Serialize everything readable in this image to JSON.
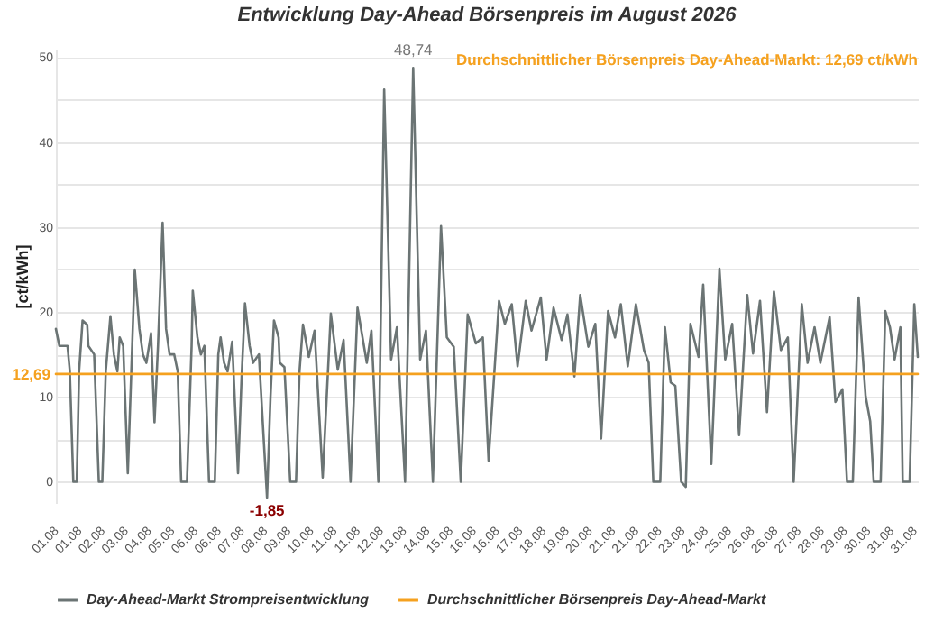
{
  "chart_data": {
    "type": "line",
    "title": "Entwicklung Day-Ahead Börsenpreis im August 2026",
    "ylabel": "[ct/kWh]",
    "xlim": [
      "2026-08-01T00:00",
      "2026-08-31T23:00"
    ],
    "ylim": [
      -2.5,
      51
    ],
    "xticks": [
      {
        "value": "2026-08-01T00:00",
        "label": "01.08"
      },
      {
        "value": "2026-08-01T20:00",
        "label": "01.08"
      },
      {
        "value": "2026-08-02T16:00",
        "label": "02.08"
      },
      {
        "value": "2026-08-03T12:00",
        "label": "03.08"
      },
      {
        "value": "2026-08-04T08:00",
        "label": "04.08"
      },
      {
        "value": "2026-08-05T04:00",
        "label": "05.08"
      },
      {
        "value": "2026-08-06T00:00",
        "label": "06.08"
      },
      {
        "value": "2026-08-06T20:00",
        "label": "06.08"
      },
      {
        "value": "2026-08-07T16:00",
        "label": "07.08"
      },
      {
        "value": "2026-08-08T12:00",
        "label": "08.08"
      },
      {
        "value": "2026-08-09T08:00",
        "label": "09.08"
      },
      {
        "value": "2026-08-10T04:00",
        "label": "10.08"
      },
      {
        "value": "2026-08-11T00:00",
        "label": "11.08"
      },
      {
        "value": "2026-08-11T20:00",
        "label": "11.08"
      },
      {
        "value": "2026-08-12T16:00",
        "label": "12.08"
      },
      {
        "value": "2026-08-13T12:00",
        "label": "13.08"
      },
      {
        "value": "2026-08-14T08:00",
        "label": "14.08"
      },
      {
        "value": "2026-08-15T04:00",
        "label": "15.08"
      },
      {
        "value": "2026-08-16T00:00",
        "label": "16.08"
      },
      {
        "value": "2026-08-16T20:00",
        "label": "16.08"
      },
      {
        "value": "2026-08-17T16:00",
        "label": "17.08"
      },
      {
        "value": "2026-08-18T12:00",
        "label": "18.08"
      },
      {
        "value": "2026-08-19T08:00",
        "label": "19.08"
      },
      {
        "value": "2026-08-20T04:00",
        "label": "20.08"
      },
      {
        "value": "2026-08-21T00:00",
        "label": "21.08"
      },
      {
        "value": "2026-08-21T20:00",
        "label": "21.08"
      },
      {
        "value": "2026-08-22T16:00",
        "label": "22.08"
      },
      {
        "value": "2026-08-23T12:00",
        "label": "23.08"
      },
      {
        "value": "2026-08-24T08:00",
        "label": "24.08"
      },
      {
        "value": "2026-08-25T04:00",
        "label": "25.08"
      },
      {
        "value": "2026-08-26T00:00",
        "label": "26.08"
      },
      {
        "value": "2026-08-26T20:00",
        "label": "26.08"
      },
      {
        "value": "2026-08-27T16:00",
        "label": "27.08"
      },
      {
        "value": "2026-08-28T12:00",
        "label": "28.08"
      },
      {
        "value": "2026-08-29T08:00",
        "label": "29.08"
      },
      {
        "value": "2026-08-30T04:00",
        "label": "30.08"
      },
      {
        "value": "2026-08-31T00:00",
        "label": "31.08"
      },
      {
        "value": "2026-08-31T20:00",
        "label": "31.08"
      }
    ],
    "yticks": [
      0,
      {
        "value": 5,
        "label": null
      },
      10,
      {
        "value": 15,
        "label": null
      },
      20,
      {
        "value": 25,
        "label": null
      },
      30,
      {
        "value": 35,
        "label": null
      },
      40,
      {
        "value": 45,
        "label": null
      },
      50
    ],
    "grid": "y",
    "legend": "bottom",
    "series": [
      {
        "name": "Day-Ahead-Markt Strompreisentwicklung",
        "color": "#6b7474",
        "x": [
          "2026-08-01T00:00",
          "2026-08-01T03:00",
          "2026-08-01T10:00",
          "2026-08-01T12:00",
          "2026-08-01T15:00",
          "2026-08-01T18:00",
          "2026-08-01T20:00",
          "2026-08-01T23:00",
          "2026-08-02T03:00",
          "2026-08-02T04:00",
          "2026-08-02T09:00",
          "2026-08-02T13:00",
          "2026-08-02T16:00",
          "2026-08-02T19:00",
          "2026-08-02T23:00",
          "2026-08-03T02:00",
          "2026-08-03T05:00",
          "2026-08-03T07:00",
          "2026-08-03T10:00",
          "2026-08-03T14:00",
          "2026-08-03T17:00",
          "2026-08-03T20:00",
          "2026-08-04T00:00",
          "2026-08-04T03:00",
          "2026-08-04T06:00",
          "2026-08-04T10:00",
          "2026-08-04T13:00",
          "2026-08-04T16:00",
          "2026-08-04T20:00",
          "2026-08-04T23:00",
          "2026-08-05T02:00",
          "2026-08-05T06:00",
          "2026-08-05T09:00",
          "2026-08-05T12:00",
          "2026-08-05T17:00",
          "2026-08-05T21:00",
          "2026-08-05T22:00",
          "2026-08-06T02:00",
          "2026-08-06T05:00",
          "2026-08-06T08:00",
          "2026-08-06T12:00",
          "2026-08-06T17:00",
          "2026-08-06T20:00",
          "2026-08-06T22:00",
          "2026-08-07T01:00",
          "2026-08-07T04:00",
          "2026-08-07T08:00",
          "2026-08-07T13:00",
          "2026-08-07T16:00",
          "2026-08-07T19:00",
          "2026-08-07T23:00",
          "2026-08-08T02:00",
          "2026-08-08T07:00",
          "2026-08-08T14:00",
          "2026-08-08T17:00",
          "2026-08-08T20:00",
          "2026-08-09T00:00",
          "2026-08-09T01:00",
          "2026-08-09T05:00",
          "2026-08-09T10:00",
          "2026-08-09T15:00",
          "2026-08-09T18:00",
          "2026-08-09T21:00",
          "2026-08-10T02:00",
          "2026-08-10T07:00",
          "2026-08-10T14:00",
          "2026-08-10T21:00",
          "2026-08-11T03:00",
          "2026-08-11T08:00",
          "2026-08-11T14:00",
          "2026-08-11T20:00",
          "2026-08-12T04:00",
          "2026-08-12T08:00",
          "2026-08-12T14:00",
          "2026-08-12T19:00",
          "2026-08-13T01:00",
          "2026-08-13T06:00",
          "2026-08-13T13:00",
          "2026-08-13T20:00",
          "2026-08-14T02:00",
          "2026-08-14T07:00",
          "2026-08-14T13:00",
          "2026-08-14T20:00",
          "2026-08-15T01:00",
          "2026-08-15T07:00",
          "2026-08-15T13:00",
          "2026-08-15T19:00",
          "2026-08-16T02:00",
          "2026-08-16T08:00",
          "2026-08-16T13:00",
          "2026-08-16T22:00",
          "2026-08-17T03:00",
          "2026-08-17T09:00",
          "2026-08-17T14:00",
          "2026-08-17T21:00",
          "2026-08-18T02:00",
          "2026-08-18T10:00",
          "2026-08-18T15:00",
          "2026-08-18T21:00",
          "2026-08-19T04:00",
          "2026-08-19T09:00",
          "2026-08-19T15:00",
          "2026-08-19T20:00",
          "2026-08-20T03:00",
          "2026-08-20T09:00",
          "2026-08-20T14:00",
          "2026-08-20T20:00",
          "2026-08-21T02:00",
          "2026-08-21T07:00",
          "2026-08-21T13:00",
          "2026-08-21T20:00",
          "2026-08-22T03:00",
          "2026-08-22T07:00",
          "2026-08-22T11:00",
          "2026-08-22T17:00",
          "2026-08-22T21:00",
          "2026-08-23T02:00",
          "2026-08-23T06:00",
          "2026-08-23T11:00",
          "2026-08-23T15:00",
          "2026-08-23T19:00",
          "2026-08-24T02:00",
          "2026-08-24T06:00",
          "2026-08-24T13:00",
          "2026-08-24T20:00",
          "2026-08-25T01:00",
          "2026-08-25T07:00",
          "2026-08-25T13:00",
          "2026-08-25T20:00",
          "2026-08-26T01:00",
          "2026-08-26T07:00",
          "2026-08-26T13:00",
          "2026-08-26T19:00",
          "2026-08-27T01:00",
          "2026-08-27T07:00",
          "2026-08-27T12:00",
          "2026-08-27T19:00",
          "2026-08-28T00:00",
          "2026-08-28T06:00",
          "2026-08-28T11:00",
          "2026-08-28T19:00",
          "2026-08-29T00:00",
          "2026-08-29T06:00",
          "2026-08-29T10:00",
          "2026-08-29T15:00",
          "2026-08-29T20:00",
          "2026-08-30T02:00",
          "2026-08-30T06:00",
          "2026-08-30T09:00",
          "2026-08-30T15:00",
          "2026-08-30T19:00",
          "2026-08-30T23:00",
          "2026-08-31T03:00",
          "2026-08-31T08:00",
          "2026-08-31T10:00",
          "2026-08-31T16:00",
          "2026-08-31T20:00",
          "2026-08-31T23:00"
        ],
        "values": [
          18,
          16,
          16,
          13,
          0,
          0,
          13,
          19,
          18.5,
          16,
          15,
          0,
          0,
          13,
          19.5,
          15,
          13,
          17,
          16,
          1,
          13,
          25,
          18,
          15,
          14,
          17.5,
          7,
          16,
          30.5,
          18,
          15,
          15,
          13,
          0,
          0,
          16,
          22.5,
          17,
          15,
          16,
          0,
          0,
          15,
          17,
          14,
          13,
          16.5,
          1,
          12,
          21,
          16,
          14,
          15,
          -1.85,
          10,
          19,
          17,
          14,
          13.5,
          0,
          0,
          13,
          18.5,
          14.7,
          17.8,
          0.5,
          19.8,
          13.2,
          16.7,
          0,
          20.5,
          14,
          17.8,
          0,
          46.2,
          14.4,
          18.2,
          0,
          48.74,
          14.4,
          17.8,
          0,
          30.1,
          17,
          15.9,
          0,
          19.7,
          16.3,
          17,
          2.5,
          21.3,
          18.6,
          20.9,
          13.6,
          21.3,
          17.8,
          21.7,
          14.4,
          20.5,
          16.7,
          19.7,
          12.4,
          22,
          15.9,
          18.6,
          5.1,
          20.1,
          17,
          20.9,
          13.6,
          20.9,
          15.5,
          14,
          0,
          0,
          18.2,
          11.7,
          11.3,
          0,
          -0.6,
          18.6,
          14.7,
          23.2,
          2.1,
          25.1,
          14.4,
          18.6,
          5.5,
          22,
          15.1,
          21.3,
          8.2,
          22.4,
          15.5,
          17,
          0,
          20.9,
          14,
          18.2,
          14,
          19.4,
          9.4,
          10.9,
          0,
          0,
          21.7,
          10.1,
          7.1,
          0,
          0,
          20.1,
          18.2,
          14.4,
          18.2,
          0,
          0,
          20.9,
          14.7
        ]
      },
      {
        "name": "Durchschnittlicher Börsenpreis Day-Ahead-Markt",
        "color": "#f5a11f",
        "x": [
          "2026-08-01T00:00",
          "2026-08-31T23:00"
        ],
        "values": [
          12.69,
          12.69
        ]
      }
    ],
    "annotations": [
      "Durchschnittlicher Börsenpreis Day-Ahead-Markt: 12,69 ct/kWh",
      {
        "text": "12,69",
        "x": "2026-08-01T00:00",
        "y": 12.69
      },
      {
        "text": "48,74",
        "x": "2026-08-13T20:00",
        "y": 48.74
      },
      {
        "text": "-1,85",
        "x": "2026-08-08T14:00",
        "y": -1.85
      }
    ]
  }
}
